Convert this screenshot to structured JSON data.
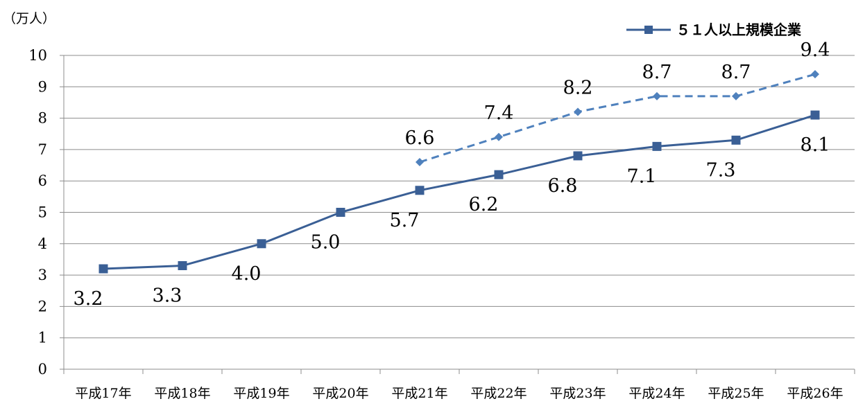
{
  "chart_data": {
    "type": "line",
    "unit_label": "（万人）",
    "categories": [
      "平成17年",
      "平成18年",
      "平成19年",
      "平成20年",
      "平成21年",
      "平成22年",
      "平成23年",
      "平成24年",
      "平成25年",
      "平成26年"
    ],
    "ylim": [
      0,
      10
    ],
    "yticks": [
      "0",
      "1",
      "2",
      "3",
      "4",
      "5",
      "6",
      "7",
      "8",
      "9",
      "10"
    ],
    "grid": true,
    "legend_position": "top-right",
    "series": [
      {
        "name": "５１人以上規模企業",
        "style": "solid",
        "marker": "square",
        "color": "#3a5f95",
        "values": [
          3.2,
          3.3,
          4.0,
          5.0,
          5.7,
          6.2,
          6.8,
          7.1,
          7.3,
          8.1
        ],
        "labels": [
          "3.2",
          "3.3",
          "4.0",
          "5.0",
          "5.7",
          "6.2",
          "6.8",
          "7.1",
          "7.3",
          "8.1"
        ]
      },
      {
        "name": "",
        "style": "dashed",
        "marker": "diamond",
        "color": "#4f81bd",
        "values": [
          null,
          null,
          null,
          null,
          6.6,
          7.4,
          8.2,
          8.7,
          8.7,
          9.4
        ],
        "labels": [
          null,
          null,
          null,
          null,
          "6.6",
          "7.4",
          "8.2",
          "8.7",
          "8.7",
          "9.4"
        ]
      }
    ]
  }
}
